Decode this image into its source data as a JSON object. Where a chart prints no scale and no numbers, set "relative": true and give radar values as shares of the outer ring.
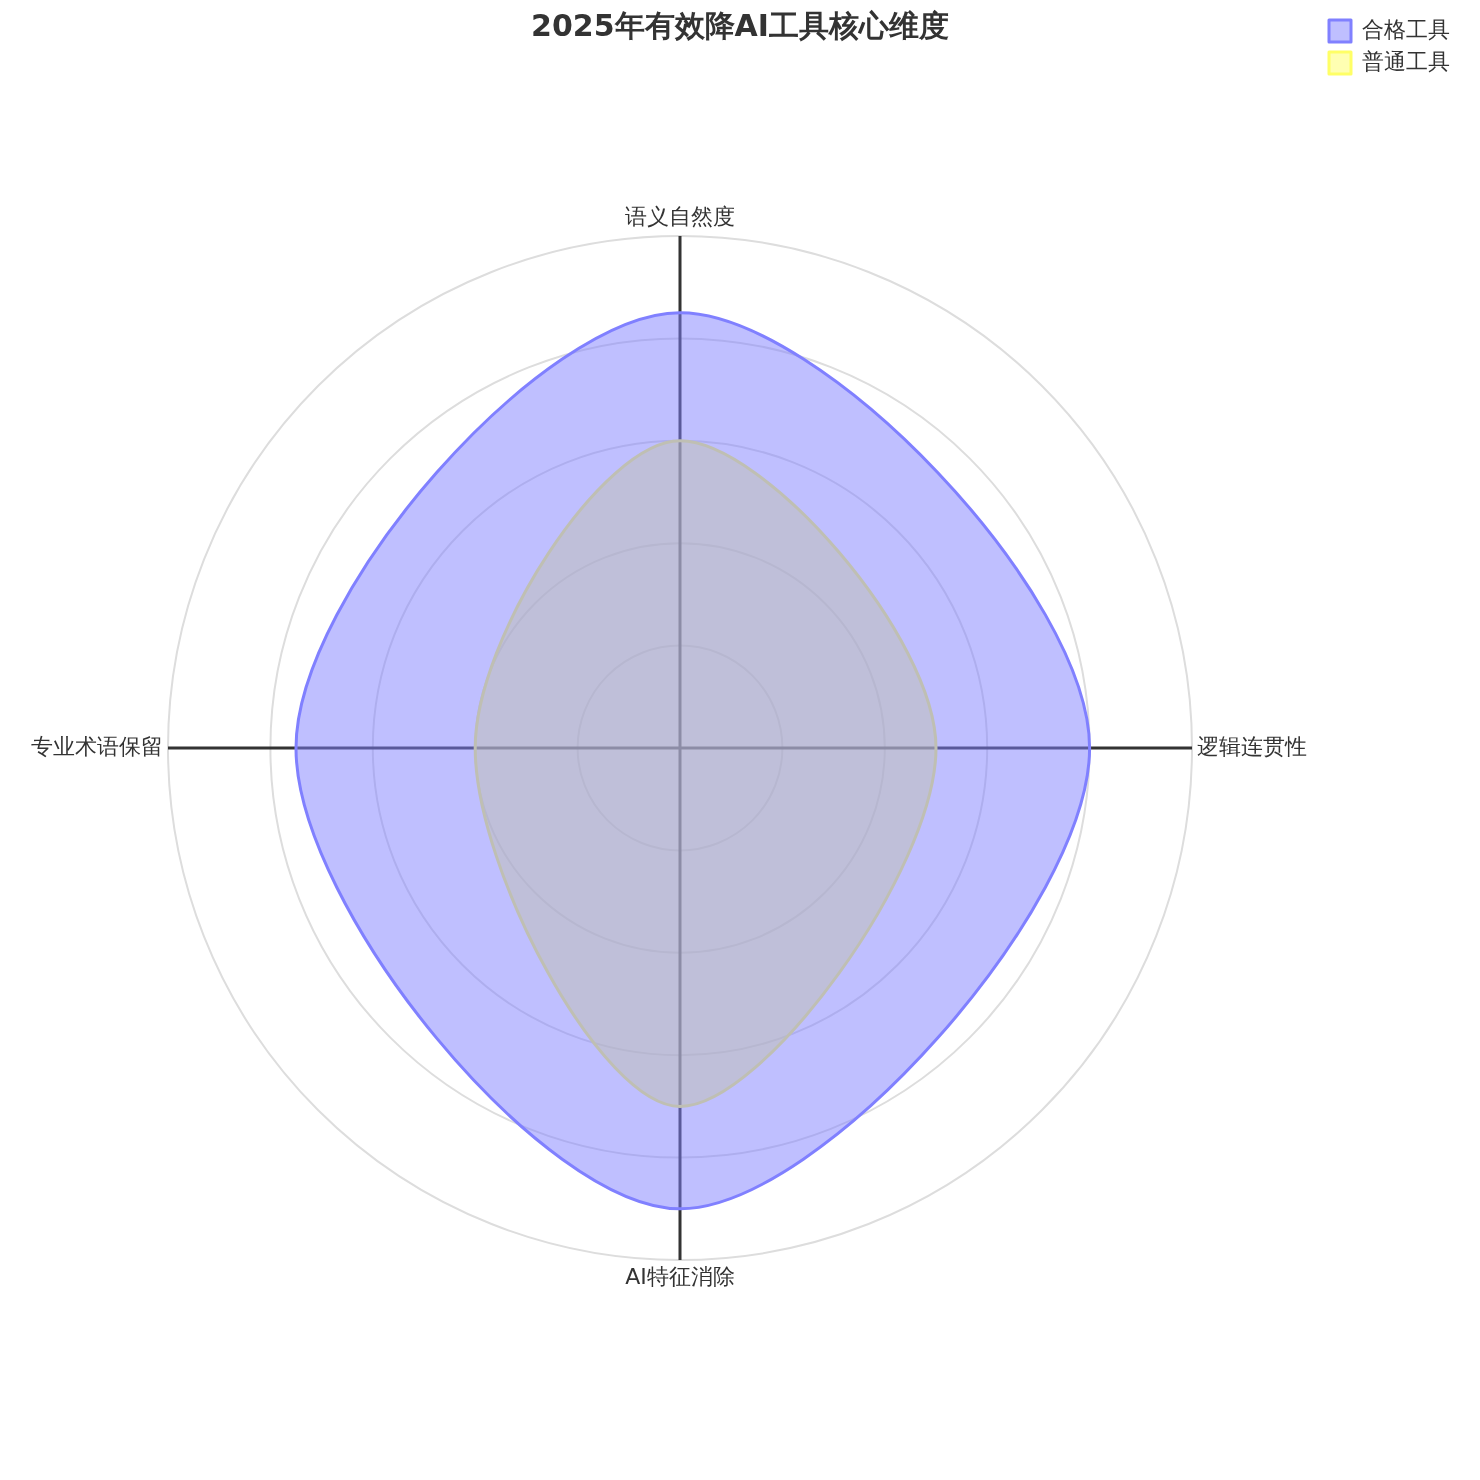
{
  "chart_data": {
    "type": "radar",
    "title": "2025年有效降AI工具核心维度",
    "categories": [
      "语义自然度",
      "逻辑连贯性",
      "AI特征消除",
      "专业术语保留"
    ],
    "relative": true,
    "legend": "top right",
    "grid": true,
    "series": [
      {
        "name": "合格工具",
        "color": "#8080ff",
        "values": [
          0.85,
          0.8,
          0.9,
          0.75
        ]
      },
      {
        "name": "普通工具",
        "color": "#ffff66",
        "values": [
          0.6,
          0.5,
          0.7,
          0.4
        ]
      }
    ]
  }
}
